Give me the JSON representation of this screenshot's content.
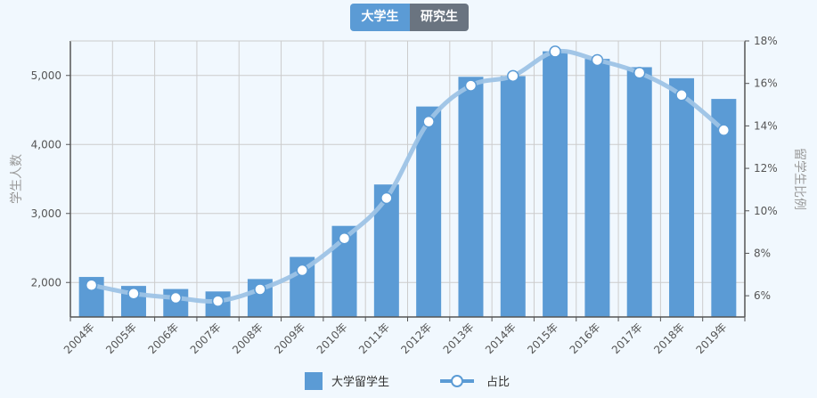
{
  "toggle": {
    "active_label": "大学生",
    "inactive_label": "研究生"
  },
  "colors": {
    "bar": "#5b9bd5",
    "line": "#9dc3e6",
    "marker_fill": "#ffffff",
    "button_active": "#5b9bd5",
    "button_inactive": "#6a7480",
    "background": "#f1f8fe"
  },
  "chart_data": {
    "type": "bar",
    "categories": [
      "2004年",
      "2005年",
      "2006年",
      "2007年",
      "2008年",
      "2009年",
      "2010年",
      "2011年",
      "2012年",
      "2013年",
      "2014年",
      "2015年",
      "2016年",
      "2017年",
      "2018年",
      "2019年"
    ],
    "series": [
      {
        "name": "大学留学生",
        "type": "bar",
        "axis": "left",
        "values": [
          2080,
          1950,
          1905,
          1870,
          2050,
          2370,
          2820,
          3420,
          4550,
          4980,
          4990,
          5350,
          5240,
          5120,
          4960,
          4660
        ]
      },
      {
        "name": "占比",
        "type": "line",
        "axis": "right",
        "values": [
          6.5,
          6.1,
          5.9,
          5.75,
          6.3,
          7.2,
          8.7,
          10.6,
          14.2,
          15.9,
          16.35,
          17.5,
          17.1,
          16.5,
          15.45,
          13.8
        ]
      }
    ],
    "ylabel": "学生人数",
    "ylabel_right": "留学生比例",
    "ylim": [
      1500,
      5500
    ],
    "ylim_right": [
      5,
      18
    ],
    "yticks": [
      2000,
      3000,
      4000,
      5000
    ],
    "ytick_labels": [
      "2,000",
      "3,000",
      "4,000",
      "5,000"
    ],
    "yticks_right": [
      6,
      8,
      10,
      12,
      14,
      16,
      18
    ],
    "ytick_labels_right": [
      "6%",
      "8%",
      "10%",
      "12%",
      "14%",
      "16%",
      "18%"
    ],
    "grid": true,
    "legend_position": "bottom"
  }
}
